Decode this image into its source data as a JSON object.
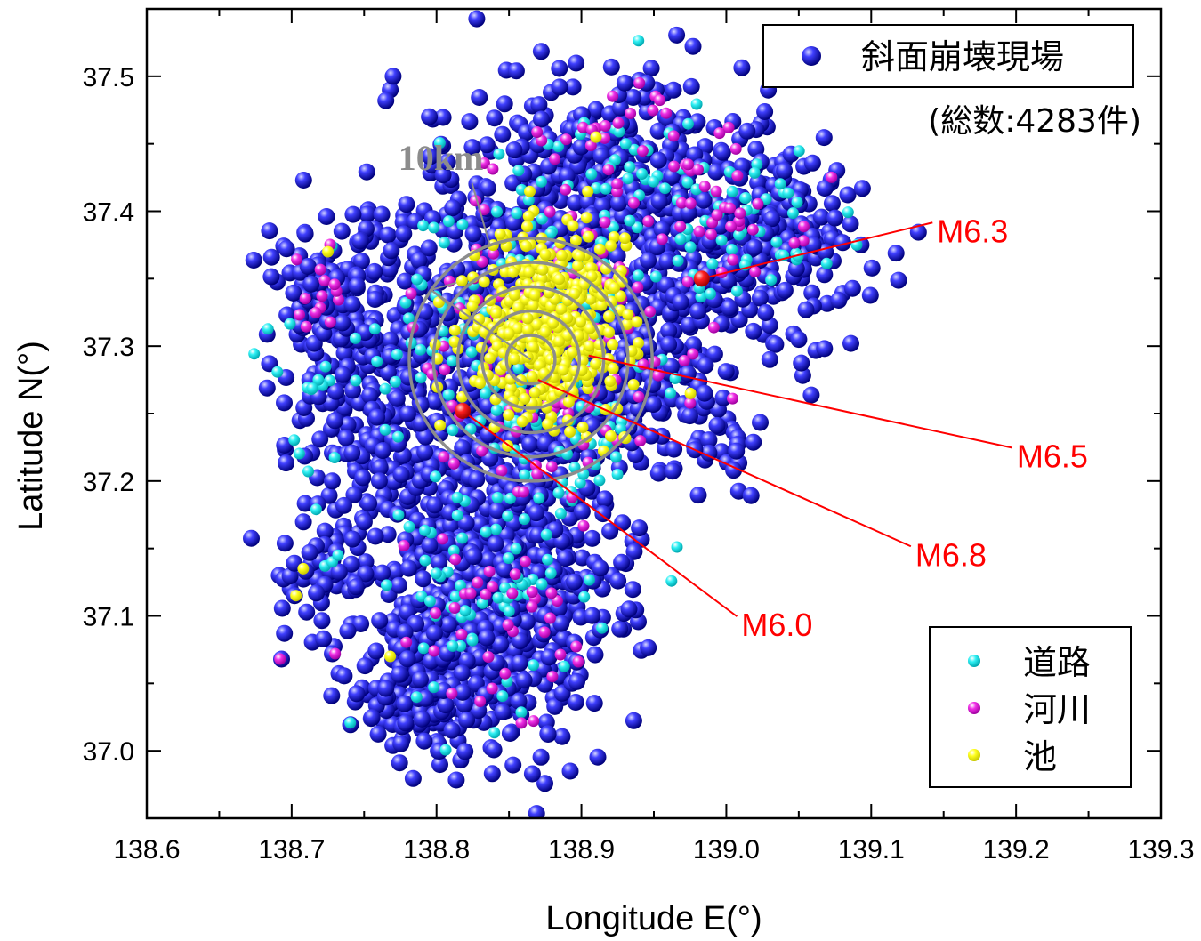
{
  "chart_data": {
    "type": "scatter",
    "title": "",
    "xlabel": "Longitude E(°)",
    "ylabel": "Latitude N(°)",
    "xlim": [
      138.6,
      139.3
    ],
    "ylim": [
      36.95,
      37.55
    ],
    "x_ticks": [
      "138.6",
      "138.7",
      "138.8",
      "138.9",
      "139.0",
      "139.1",
      "139.2",
      "139.3"
    ],
    "y_ticks": [
      "37.0",
      "37.1",
      "37.2",
      "37.3",
      "37.4",
      "37.5"
    ],
    "legend_main": {
      "label": "斜面崩壊現場",
      "note": "(総数:4283件)",
      "color": "#1a1aff",
      "position": "top-right"
    },
    "legend_types": [
      {
        "label": "道路",
        "color": "#22e8ee"
      },
      {
        "label": "河川",
        "color": "#ee22dd"
      },
      {
        "label": "池",
        "color": "#f5f500"
      }
    ],
    "legend_types_position": "bottom-right",
    "scale": {
      "label": "10km",
      "center": [
        138.865,
        37.29
      ],
      "ring_radius_km": [
        2,
        4,
        6,
        8,
        10
      ]
    },
    "earthquakes": [
      {
        "label": "M6.3",
        "lon": 138.983,
        "lat": 37.35,
        "label_lon": 139.17,
        "label_lat": 37.385,
        "marker": true
      },
      {
        "label": "M6.5",
        "lon": 138.905,
        "lat": 37.293,
        "label_lon": 139.225,
        "label_lat": 37.218,
        "marker": false
      },
      {
        "label": "M6.8",
        "lon": 138.87,
        "lat": 37.275,
        "label_lon": 139.155,
        "label_lat": 37.145,
        "marker": false
      },
      {
        "label": "M6.0",
        "lon": 138.818,
        "lat": 37.252,
        "label_lon": 139.035,
        "label_lat": 37.093,
        "marker": true
      }
    ],
    "series": [
      {
        "name": "斜面崩壊現場",
        "color": "#1a1aff",
        "clusters": [
          {
            "lon": 138.86,
            "lat": 37.3,
            "sdx": 0.05,
            "sdy": 0.07,
            "n": 800
          },
          {
            "lon": 138.84,
            "lat": 37.12,
            "sdx": 0.04,
            "sdy": 0.06,
            "n": 650
          },
          {
            "lon": 138.79,
            "lat": 37.05,
            "sdx": 0.025,
            "sdy": 0.025,
            "n": 160
          },
          {
            "lon": 138.92,
            "lat": 37.42,
            "sdx": 0.04,
            "sdy": 0.04,
            "n": 280
          },
          {
            "lon": 139.02,
            "lat": 37.38,
            "sdx": 0.04,
            "sdy": 0.04,
            "n": 280
          },
          {
            "lon": 138.75,
            "lat": 37.28,
            "sdx": 0.03,
            "sdy": 0.06,
            "n": 260
          },
          {
            "lon": 138.72,
            "lat": 37.34,
            "sdx": 0.015,
            "sdy": 0.015,
            "n": 50
          },
          {
            "lon": 138.73,
            "lat": 37.13,
            "sdx": 0.02,
            "sdy": 0.025,
            "n": 50
          },
          {
            "lon": 138.95,
            "lat": 37.31,
            "sdx": 0.02,
            "sdy": 0.04,
            "n": 100
          },
          {
            "lon": 138.99,
            "lat": 37.24,
            "sdx": 0.015,
            "sdy": 0.02,
            "n": 25
          }
        ],
        "points": [
          [
            138.768,
            37.49
          ],
          [
            138.77,
            37.5
          ],
          [
            138.765,
            37.482
          ],
          [
            138.693,
            37.068
          ],
          [
            138.695,
            37.087
          ],
          [
            138.702,
            37.115
          ],
          [
            138.722,
            37.083
          ],
          [
            138.728,
            37.072
          ],
          [
            139.06,
            37.375
          ],
          [
            139.075,
            37.395
          ],
          [
            139.093,
            37.375
          ],
          [
            139.05,
            37.305
          ],
          [
            139.055,
            37.327
          ],
          [
            139.005,
            37.208
          ],
          [
            138.985,
            37.265
          ],
          [
            139.03,
            37.29
          ],
          [
            138.94,
            37.497
          ],
          [
            138.945,
            37.495
          ],
          [
            138.93,
            37.495
          ],
          [
            138.728,
            37.2
          ],
          [
            138.718,
            37.183
          ],
          [
            138.742,
            37.157
          ],
          [
            138.795,
            37.47
          ],
          [
            139.04,
            37.43
          ]
        ]
      },
      {
        "name": "道路",
        "color": "#22e8ee",
        "clusters": [
          {
            "lon": 138.87,
            "lat": 37.3,
            "sdx": 0.04,
            "sdy": 0.06,
            "n": 170
          },
          {
            "lon": 138.84,
            "lat": 37.12,
            "sdx": 0.04,
            "sdy": 0.05,
            "n": 70
          },
          {
            "lon": 138.93,
            "lat": 37.42,
            "sdx": 0.04,
            "sdy": 0.03,
            "n": 50
          },
          {
            "lon": 139.01,
            "lat": 37.39,
            "sdx": 0.03,
            "sdy": 0.03,
            "n": 40
          },
          {
            "lon": 138.74,
            "lat": 37.26,
            "sdx": 0.03,
            "sdy": 0.05,
            "n": 30
          }
        ],
        "points": [
          [
            138.723,
            37.137
          ],
          [
            138.728,
            37.14
          ],
          [
            138.732,
            37.145
          ],
          [
            139.09,
            37.375
          ]
        ]
      },
      {
        "name": "河川",
        "color": "#ee22dd",
        "clusters": [
          {
            "lon": 138.88,
            "lat": 37.31,
            "sdx": 0.04,
            "sdy": 0.05,
            "n": 140
          },
          {
            "lon": 138.84,
            "lat": 37.1,
            "sdx": 0.04,
            "sdy": 0.05,
            "n": 40
          },
          {
            "lon": 138.72,
            "lat": 37.34,
            "sdx": 0.012,
            "sdy": 0.015,
            "n": 14
          },
          {
            "lon": 139.01,
            "lat": 37.4,
            "sdx": 0.03,
            "sdy": 0.03,
            "n": 30
          },
          {
            "lon": 138.93,
            "lat": 37.46,
            "sdx": 0.03,
            "sdy": 0.03,
            "n": 25
          }
        ],
        "points": [
          [
            138.94,
            37.495
          ],
          [
            138.692,
            37.068
          ],
          [
            138.73,
            37.072
          ]
        ]
      },
      {
        "name": "池",
        "color": "#f5f500",
        "clusters": [
          {
            "lon": 138.87,
            "lat": 37.32,
            "sdx": 0.025,
            "sdy": 0.035,
            "n": 340
          },
          {
            "lon": 138.88,
            "lat": 37.285,
            "sdx": 0.03,
            "sdy": 0.025,
            "n": 80
          },
          {
            "lon": 138.9,
            "lat": 37.33,
            "sdx": 0.015,
            "sdy": 0.02,
            "n": 60
          }
        ],
        "points": [
          [
            138.708,
            37.135
          ],
          [
            138.703,
            37.115
          ],
          [
            138.768,
            37.07
          ],
          [
            138.725,
            37.37
          ],
          [
            138.91,
            37.455
          ],
          [
            138.93,
            37.38
          ]
        ]
      }
    ]
  }
}
